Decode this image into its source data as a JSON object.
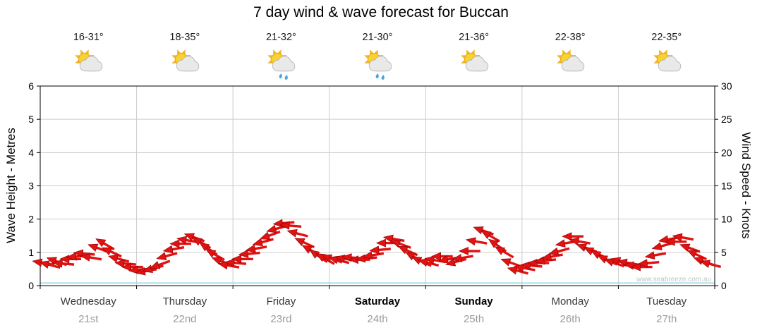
{
  "title": "7 day wind & wave forecast for Buccan",
  "watermark": "www.seabreeze.com.au",
  "axes": {
    "left_label": "Wave Height - Metres",
    "right_label": "Wind Speed - Knots",
    "left_ticks": [
      0,
      1,
      2,
      3,
      4,
      5,
      6
    ],
    "right_ticks": [
      0,
      5,
      10,
      15,
      20,
      25,
      30
    ]
  },
  "days": [
    {
      "name": "Wednesday",
      "date": "21st",
      "temp": "16-31°",
      "icon": "sun-cloud-icon",
      "bold": false
    },
    {
      "name": "Thursday",
      "date": "22nd",
      "temp": "18-35°",
      "icon": "sun-cloud-icon",
      "bold": false
    },
    {
      "name": "Friday",
      "date": "23rd",
      "temp": "21-32°",
      "icon": "sun-cloud-rain-icon",
      "bold": false
    },
    {
      "name": "Saturday",
      "date": "24th",
      "temp": "21-30°",
      "icon": "sun-cloud-rain-icon",
      "bold": true
    },
    {
      "name": "Sunday",
      "date": "25th",
      "temp": "21-36°",
      "icon": "sun-cloud-icon",
      "bold": true
    },
    {
      "name": "Monday",
      "date": "26th",
      "temp": "22-38°",
      "icon": "sun-cloud-icon",
      "bold": false
    },
    {
      "name": "Tuesday",
      "date": "27th",
      "temp": "22-35°",
      "icon": "sun-cloud-icon",
      "bold": false
    }
  ],
  "colors": {
    "arrow_fill": "#e11212",
    "arrow_outline": "#8f0000",
    "grid": "#cccccc",
    "plot_border": "#000000",
    "wave_line": "#93d4e6",
    "watermark": "#c2c2c2"
  },
  "chart_data": {
    "type": "scatter",
    "title": "7 day wind & wave forecast for Buccan",
    "x_categories": [
      "Wednesday 21st",
      "Thursday 22nd",
      "Friday 23rd",
      "Saturday 24th",
      "Sunday 25th",
      "Monday 26th",
      "Tuesday 27th"
    ],
    "points_per_day": 14,
    "y_left": {
      "label": "Wave Height - Metres",
      "range": [
        0,
        6
      ]
    },
    "y_right": {
      "label": "Wind Speed - Knots",
      "range": [
        0,
        30
      ]
    },
    "grid": true,
    "series": [
      {
        "name": "Wind Speed",
        "units": "knots",
        "axis": "right",
        "marker": "red-wind-arrow",
        "values": [
          3.4,
          3.1,
          3.6,
          3.3,
          4.0,
          4.4,
          4.8,
          4.2,
          5.6,
          6.2,
          5.0,
          4.0,
          3.3,
          2.8,
          2.4,
          2.2,
          2.6,
          3.2,
          4.5,
          5.5,
          6.3,
          6.8,
          7.2,
          6.4,
          5.5,
          4.6,
          3.6,
          3.0,
          3.4,
          4.0,
          4.8,
          5.6,
          6.6,
          7.6,
          8.6,
          9.4,
          9.0,
          7.8,
          6.4,
          5.2,
          4.4,
          4.0,
          4.0,
          3.8,
          4.0,
          4.2,
          3.9,
          4.1,
          4.6,
          5.4,
          6.4,
          7.0,
          6.2,
          5.2,
          4.2,
          3.6,
          3.4,
          3.8,
          4.4,
          4.0,
          3.6,
          4.2,
          5.2,
          6.6,
          8.2,
          7.4,
          6.0,
          5.0,
          3.4,
          2.2,
          2.6,
          3.0,
          3.4,
          3.8,
          4.4,
          5.2,
          6.4,
          7.4,
          6.6,
          5.6,
          5.0,
          4.4,
          3.8,
          3.4,
          3.6,
          3.4,
          3.0,
          2.8,
          3.4,
          4.6,
          6.0,
          7.0,
          6.6,
          7.2,
          5.6,
          4.6,
          3.6,
          3.2
        ],
        "directions_deg": [
          190,
          195,
          200,
          185,
          180,
          175,
          185,
          190,
          200,
          210,
          205,
          195,
          185,
          180,
          175,
          170,
          165,
          160,
          165,
          170,
          180,
          190,
          200,
          210,
          215,
          210,
          200,
          190,
          185,
          180,
          175,
          170,
          165,
          160,
          165,
          175,
          185,
          195,
          205,
          210,
          215,
          210,
          200,
          195,
          190,
          185,
          180,
          175,
          170,
          175,
          180,
          190,
          200,
          205,
          210,
          205,
          195,
          190,
          180,
          170,
          165,
          170,
          180,
          190,
          200,
          210,
          215,
          210,
          200,
          195,
          190,
          185,
          180,
          175,
          170,
          165,
          170,
          180,
          190,
          200,
          205,
          210,
          205,
          200,
          195,
          190,
          185,
          180,
          175,
          170,
          165,
          170,
          180,
          190,
          200,
          205,
          200,
          195
        ]
      },
      {
        "name": "Wave Height",
        "units": "metres",
        "axis": "left",
        "marker": "line",
        "constant_value": 0.08
      }
    ]
  }
}
